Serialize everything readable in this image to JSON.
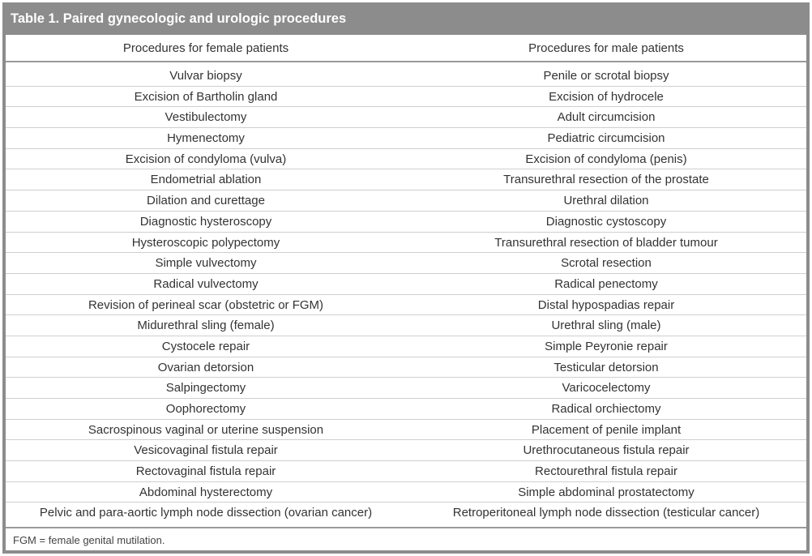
{
  "table": {
    "title": "Table 1. Paired gynecologic and urologic procedures",
    "headers": [
      "Procedures for female patients",
      "Procedures for male patients"
    ],
    "rows": [
      [
        "Vulvar biopsy",
        "Penile or scrotal biopsy"
      ],
      [
        "Excision of Bartholin gland",
        "Excision of hydrocele"
      ],
      [
        "Vestibulectomy",
        "Adult circumcision"
      ],
      [
        "Hymenectomy",
        "Pediatric circumcision"
      ],
      [
        "Excision of condyloma (vulva)",
        "Excision of condyloma (penis)"
      ],
      [
        "Endometrial ablation",
        "Transurethral resection of the prostate"
      ],
      [
        "Dilation and curettage",
        "Urethral dilation"
      ],
      [
        "Diagnostic hysteroscopy",
        "Diagnostic cystoscopy"
      ],
      [
        "Hysteroscopic polypectomy",
        "Transurethral resection of bladder tumour"
      ],
      [
        "Simple vulvectomy",
        "Scrotal resection"
      ],
      [
        "Radical vulvectomy",
        "Radical penectomy"
      ],
      [
        "Revision of perineal scar (obstetric or FGM)",
        "Distal hypospadias repair"
      ],
      [
        "Midurethral sling (female)",
        "Urethral sling (male)"
      ],
      [
        "Cystocele repair",
        "Simple Peyronie repair"
      ],
      [
        "Ovarian detorsion",
        "Testicular detorsion"
      ],
      [
        "Salpingectomy",
        "Varicocelectomy"
      ],
      [
        "Oophorectomy",
        "Radical orchiectomy"
      ],
      [
        "Sacrospinous vaginal or uterine suspension",
        "Placement of penile implant"
      ],
      [
        "Vesicovaginal fistula repair",
        "Urethrocutaneous fistula repair"
      ],
      [
        "Rectovaginal fistula repair",
        "Rectourethral fistula repair"
      ],
      [
        "Abdominal hysterectomy",
        "Simple abdominal prostatectomy"
      ],
      [
        "Pelvic and para-aortic lymph node dissection (ovarian cancer)",
        "Retroperitoneal lymph node dissection (testicular cancer)"
      ]
    ],
    "footnote": "FGM = female genital mutilation.",
    "colors": {
      "frame": "#8c8c8c",
      "title_text": "#ffffff",
      "body_text": "#333333",
      "rule": "#cfcfcf"
    }
  }
}
